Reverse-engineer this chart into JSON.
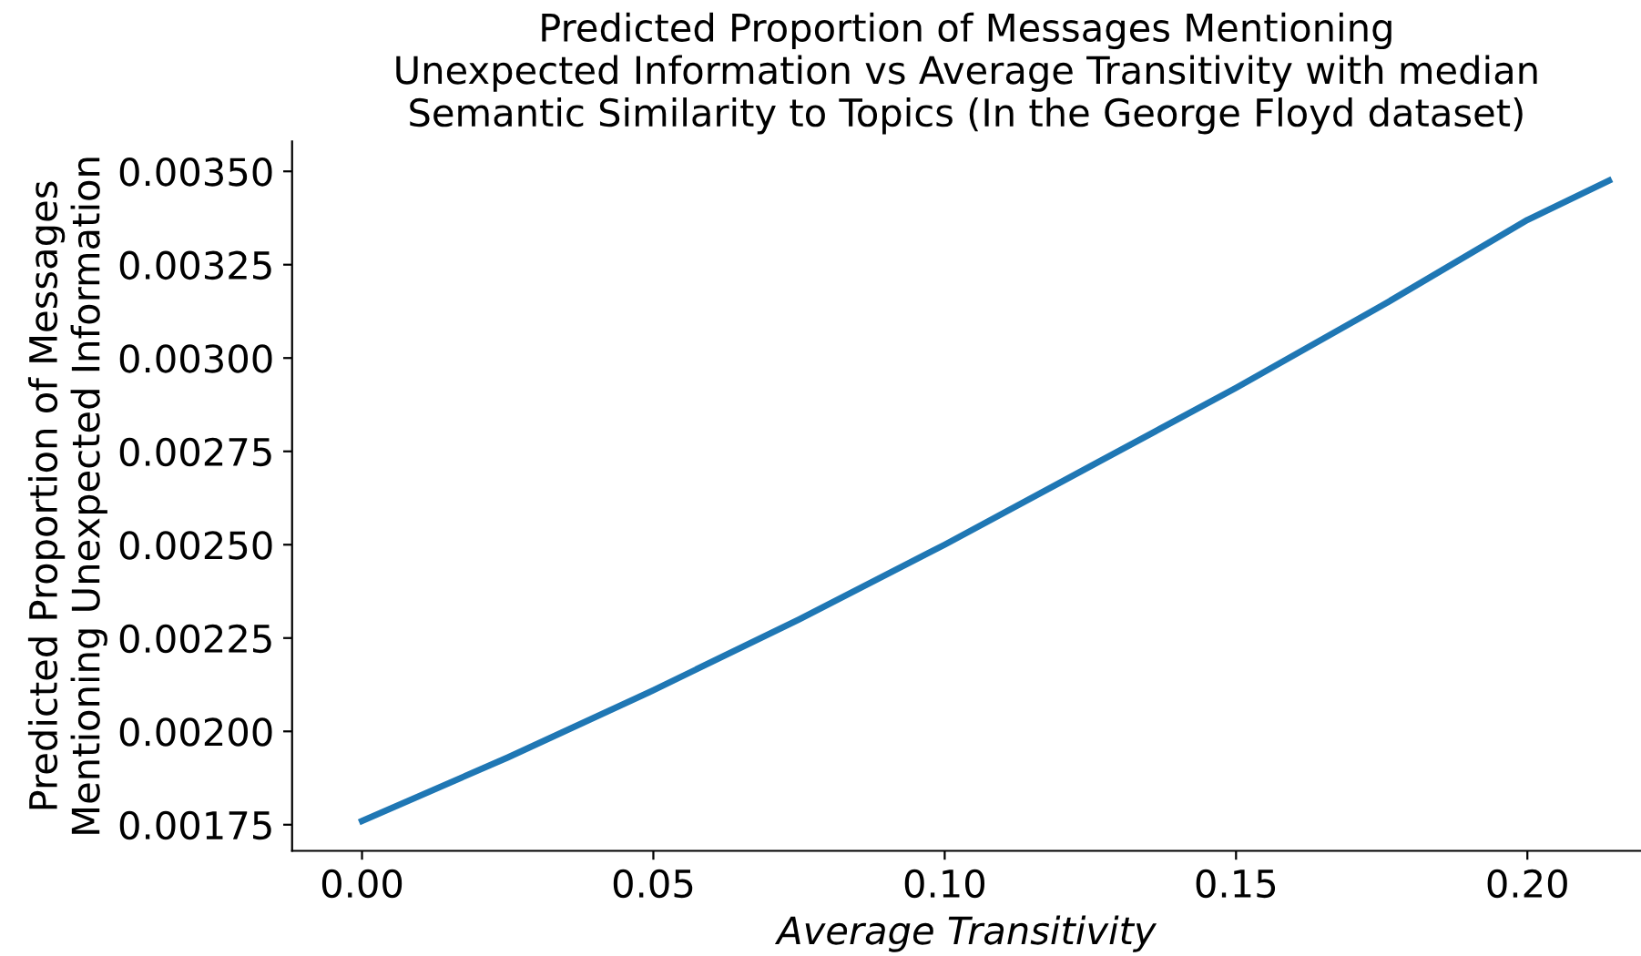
{
  "chart_data": {
    "type": "line",
    "title": "Predicted Proportion of Messages Mentioning\nUnexpected Information vs Average Transitivity with median\nSemantic Similarity to Topics (In the George Floyd dataset)",
    "xlabel": "Average Transitivity",
    "ylabel": "Predicted Proportion of Messages\nMentioning Unexpected Information",
    "series": [
      {
        "color": "#1f77b4",
        "x": [
          0.0,
          0.025,
          0.05,
          0.075,
          0.1,
          0.125,
          0.15,
          0.175,
          0.2,
          0.214
        ],
        "values": [
          0.00176,
          0.00193,
          0.00211,
          0.0023,
          0.0025,
          0.00271,
          0.00292,
          0.00314,
          0.00337,
          0.003475
        ]
      }
    ],
    "xlim": [
      -0.012,
      0.2195
    ],
    "ylim": [
      0.00168,
      0.00358
    ],
    "xticks": [
      {
        "value": 0.0,
        "label": "0.00"
      },
      {
        "value": 0.05,
        "label": "0.05"
      },
      {
        "value": 0.1,
        "label": "0.10"
      },
      {
        "value": 0.15,
        "label": "0.15"
      },
      {
        "value": 0.2,
        "label": "0.20"
      }
    ],
    "yticks": [
      0.00175,
      {
        "value": 0.002,
        "label": "0.00200"
      },
      0.00225,
      {
        "value": 0.0025,
        "label": "0.00250"
      },
      0.00275,
      {
        "value": 0.003,
        "label": "0.00300"
      },
      0.00325,
      {
        "value": 0.0035,
        "label": "0.00350"
      }
    ],
    "grid": false,
    "legend": false,
    "marker": "none",
    "line_style": "solid"
  }
}
